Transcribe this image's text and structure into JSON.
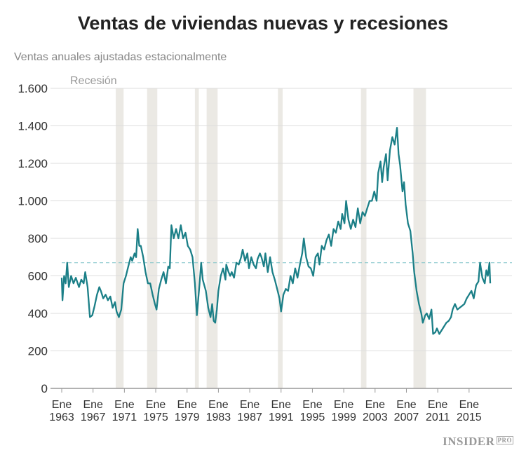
{
  "chart_data": {
    "type": "line",
    "title": "Ventas de viviendas nuevas y recesiones",
    "subtitle": "Ventas anuales ajustadas estacionalmente",
    "recession_label": "Recesión",
    "ylim": [
      0,
      1600
    ],
    "yticks": [
      0,
      200,
      400,
      600,
      800,
      1000,
      1200,
      1400,
      1600
    ],
    "ytick_labels": [
      "0",
      "200",
      "400",
      "600",
      "800",
      "1.000",
      "1.200",
      "1.400",
      "1.600"
    ],
    "xlim": [
      1961.5,
      2019.5
    ],
    "xticks": [
      1963,
      1967,
      1971,
      1975,
      1979,
      1983,
      1987,
      1991,
      1995,
      1999,
      2003,
      2007,
      2011,
      2015
    ],
    "xtick_prefix": "Ene",
    "grid": true,
    "reference_line": 670,
    "recessions": [
      [
        1969.9,
        1970.9
      ],
      [
        1973.9,
        1975.2
      ],
      [
        1980.0,
        1980.5
      ],
      [
        1981.5,
        1982.9
      ],
      [
        1990.6,
        1991.2
      ],
      [
        2001.2,
        2001.9
      ],
      [
        2007.9,
        2009.5
      ]
    ],
    "colors": {
      "line": "#1b7f87",
      "recession": "#ebe9e4",
      "reference": "#7fc4c8",
      "grid": "#dddddd"
    },
    "x": [
      1963.0,
      1963.1,
      1963.3,
      1963.5,
      1963.7,
      1963.9,
      1964.2,
      1964.5,
      1964.8,
      1965.2,
      1965.5,
      1965.8,
      1966.0,
      1966.3,
      1966.6,
      1966.9,
      1967.2,
      1967.5,
      1967.8,
      1968.0,
      1968.3,
      1968.6,
      1968.9,
      1969.2,
      1969.5,
      1969.8,
      1970.0,
      1970.3,
      1970.6,
      1970.9,
      1971.2,
      1971.5,
      1971.8,
      1972.0,
      1972.3,
      1972.5,
      1972.7,
      1972.9,
      1973.1,
      1973.4,
      1973.7,
      1974.0,
      1974.3,
      1974.6,
      1974.9,
      1975.1,
      1975.4,
      1975.7,
      1976.0,
      1976.3,
      1976.6,
      1976.8,
      1977.0,
      1977.3,
      1977.6,
      1977.9,
      1978.2,
      1978.5,
      1978.8,
      1979.1,
      1979.4,
      1979.7,
      1980.0,
      1980.25,
      1980.6,
      1980.8,
      1981.0,
      1981.4,
      1981.7,
      1982.0,
      1982.2,
      1982.4,
      1982.6,
      1982.8,
      1983.0,
      1983.3,
      1983.6,
      1983.9,
      1984.0,
      1984.3,
      1984.5,
      1984.7,
      1985.0,
      1985.3,
      1985.6,
      1985.9,
      1986.1,
      1986.4,
      1986.7,
      1986.9,
      1987.2,
      1987.5,
      1987.8,
      1988.0,
      1988.3,
      1988.5,
      1988.8,
      1989.0,
      1989.3,
      1989.6,
      1989.9,
      1990.2,
      1990.5,
      1990.8,
      1991.0,
      1991.3,
      1991.6,
      1991.9,
      1992.2,
      1992.5,
      1992.8,
      1993.1,
      1993.4,
      1993.7,
      1993.9,
      1994.2,
      1994.5,
      1994.8,
      1995.1,
      1995.4,
      1995.7,
      1995.9,
      1996.2,
      1996.5,
      1996.8,
      1997.1,
      1997.4,
      1997.7,
      1998.0,
      1998.3,
      1998.6,
      1998.8,
      1999.1,
      1999.3,
      1999.6,
      1999.9,
      2000.2,
      2000.5,
      2000.8,
      2001.1,
      2001.4,
      2001.7,
      2002.0,
      2002.3,
      2002.6,
      2002.9,
      2003.2,
      2003.4,
      2003.7,
      2003.9,
      2004.1,
      2004.4,
      2004.6,
      2004.9,
      2005.2,
      2005.5,
      2005.8,
      2006.0,
      2006.2,
      2006.5,
      2006.7,
      2006.9,
      2007.2,
      2007.5,
      2007.8,
      2008.0,
      2008.3,
      2008.6,
      2008.9,
      2009.1,
      2009.4,
      2009.6,
      2009.9,
      2010.2,
      2010.4,
      2010.7,
      2010.9,
      2011.2,
      2011.5,
      2011.8,
      2012.1,
      2012.4,
      2012.7,
      2012.9,
      2013.2,
      2013.5,
      2013.8,
      2014.1,
      2014.4,
      2014.7,
      2015.0,
      2015.3,
      2015.6,
      2015.9,
      2016.2,
      2016.4,
      2016.7,
      2017.0,
      2017.2,
      2017.4,
      2017.6,
      2017.7
    ],
    "y": [
      590,
      470,
      600,
      560,
      670,
      540,
      600,
      560,
      590,
      540,
      580,
      560,
      620,
      540,
      380,
      390,
      440,
      500,
      540,
      520,
      480,
      500,
      470,
      490,
      430,
      460,
      410,
      380,
      420,
      560,
      600,
      650,
      700,
      680,
      720,
      700,
      850,
      760,
      760,
      700,
      620,
      560,
      560,
      500,
      450,
      420,
      530,
      580,
      620,
      560,
      650,
      640,
      870,
      800,
      850,
      800,
      870,
      800,
      830,
      760,
      740,
      700,
      560,
      390,
      560,
      670,
      580,
      520,
      430,
      380,
      450,
      360,
      350,
      420,
      520,
      600,
      640,
      580,
      660,
      620,
      600,
      620,
      590,
      670,
      660,
      700,
      740,
      680,
      720,
      640,
      700,
      660,
      640,
      690,
      720,
      700,
      650,
      720,
      620,
      700,
      620,
      580,
      530,
      480,
      410,
      500,
      530,
      520,
      600,
      560,
      640,
      590,
      660,
      720,
      800,
      700,
      650,
      640,
      600,
      700,
      720,
      660,
      760,
      740,
      790,
      820,
      760,
      850,
      830,
      890,
      850,
      930,
      880,
      1000,
      900,
      850,
      900,
      860,
      960,
      880,
      940,
      920,
      960,
      1000,
      1000,
      1050,
      1000,
      1150,
      1210,
      1100,
      1180,
      1250,
      1110,
      1270,
      1340,
      1300,
      1390,
      1250,
      1190,
      1050,
      1100,
      980,
      880,
      840,
      720,
      620,
      520,
      450,
      400,
      350,
      390,
      400,
      370,
      420,
      290,
      300,
      320,
      290,
      310,
      330,
      350,
      360,
      380,
      420,
      450,
      420,
      430,
      440,
      450,
      480,
      500,
      520,
      480,
      550,
      570,
      670,
      590,
      560,
      630,
      600,
      670,
      560
    ]
  },
  "footer": {
    "logo": "INSIDER",
    "logo_sub": "PRO"
  }
}
